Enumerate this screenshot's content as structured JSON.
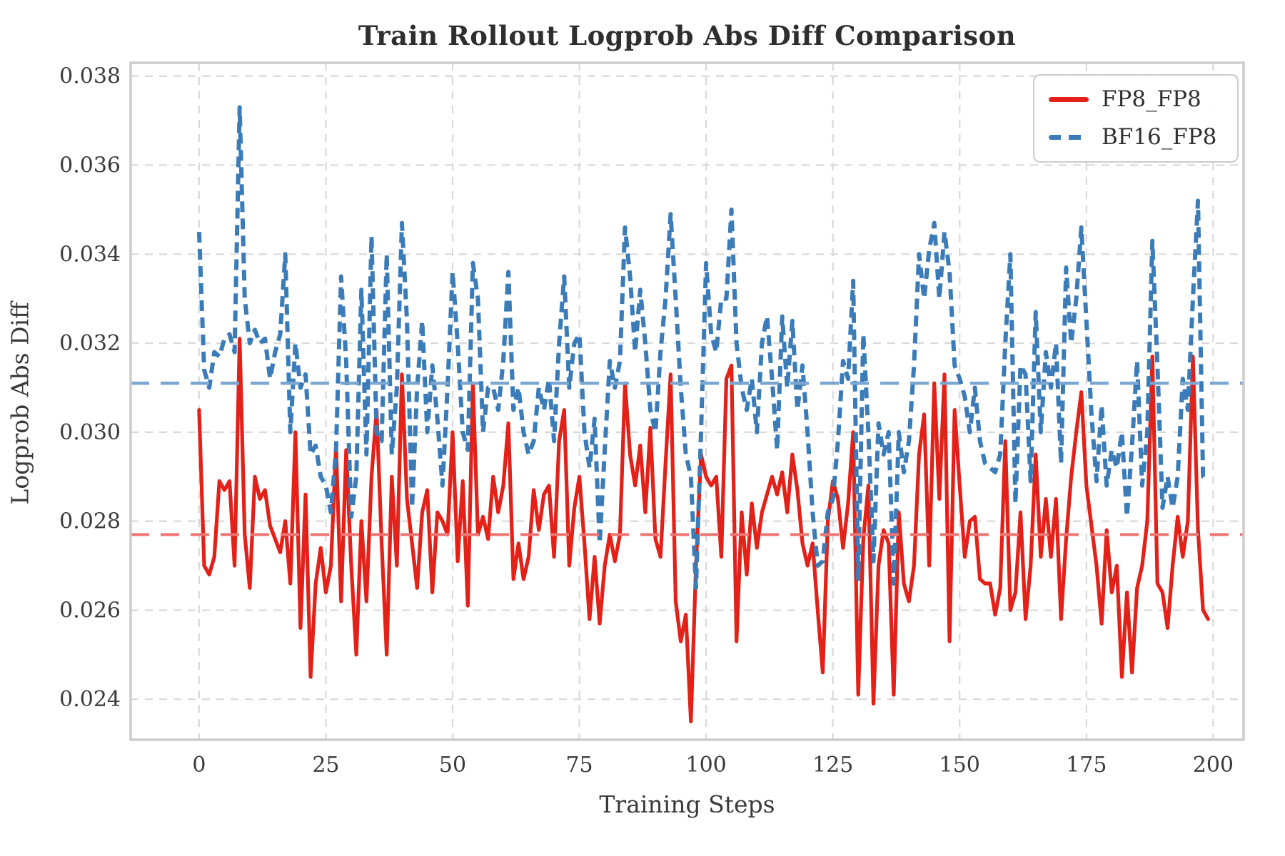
{
  "figure": {
    "title": "Train Rollout Logprob Abs Diff Comparison",
    "background": "#ffffff"
  },
  "legend": {
    "position": "upper right",
    "items": [
      {
        "label": "FP8_FP8"
      },
      {
        "label": "BF16_FP8"
      }
    ]
  },
  "chart_data": {
    "type": "line",
    "title": "Train Rollout Logprob Abs Diff Comparison",
    "xlabel": "Training Steps",
    "ylabel": "Logprob Abs Diff",
    "x_start": 0,
    "x_interval": 1,
    "n_points": 200,
    "xlim": [
      -13.5,
      206
    ],
    "ylim": [
      0.02309,
      0.0383
    ],
    "x_ticks": [
      0,
      25,
      50,
      75,
      100,
      125,
      150,
      175,
      200
    ],
    "y_ticks": [
      0.024,
      0.026,
      0.028,
      0.03,
      0.032,
      0.034,
      0.036,
      0.038
    ],
    "grid": "dashed, both axes",
    "legend_position": "upper right",
    "colors": {
      "fp8_line": "#e32119",
      "bf16_line": "#3b7cb8",
      "fp8_mean_line": "#ee7572",
      "bf16_mean_line": "#7aa6d2",
      "grid": "#d9d9d9",
      "spine": "#cccccc",
      "text": "#3a3a3a"
    },
    "mean_lines": [
      {
        "series": "FP8_FP8",
        "value": 0.0277,
        "style": "dashed"
      },
      {
        "series": "BF16_FP8",
        "value": 0.0311,
        "style": "dashed"
      }
    ],
    "series": [
      {
        "name": "FP8_FP8",
        "style": "solid",
        "color": "#e32119",
        "values": [
          0.0305,
          0.027,
          0.0268,
          0.0272,
          0.0289,
          0.0287,
          0.0289,
          0.027,
          0.0321,
          0.0277,
          0.0265,
          0.029,
          0.0285,
          0.0287,
          0.0279,
          0.0276,
          0.0273,
          0.028,
          0.0266,
          0.03,
          0.0256,
          0.0286,
          0.0245,
          0.0266,
          0.0274,
          0.0264,
          0.027,
          0.0297,
          0.0262,
          0.0296,
          0.027,
          0.025,
          0.028,
          0.0262,
          0.029,
          0.0305,
          0.0275,
          0.025,
          0.029,
          0.027,
          0.0313,
          0.0285,
          0.0275,
          0.0265,
          0.0282,
          0.0287,
          0.0264,
          0.0282,
          0.028,
          0.0277,
          0.03,
          0.0271,
          0.0289,
          0.0261,
          0.0311,
          0.0277,
          0.0281,
          0.0276,
          0.029,
          0.0282,
          0.0288,
          0.0302,
          0.0267,
          0.0275,
          0.0267,
          0.0272,
          0.0287,
          0.0278,
          0.0286,
          0.0288,
          0.0272,
          0.0298,
          0.0305,
          0.027,
          0.0283,
          0.029,
          0.0275,
          0.0258,
          0.0272,
          0.0257,
          0.027,
          0.0277,
          0.0271,
          0.0277,
          0.0311,
          0.0295,
          0.0288,
          0.0297,
          0.0282,
          0.0301,
          0.0276,
          0.0272,
          0.0293,
          0.0313,
          0.0262,
          0.0253,
          0.0259,
          0.0235,
          0.027,
          0.0295,
          0.029,
          0.0288,
          0.029,
          0.0272,
          0.0312,
          0.0315,
          0.0253,
          0.0282,
          0.0268,
          0.0284,
          0.0274,
          0.0282,
          0.0286,
          0.029,
          0.0286,
          0.0291,
          0.0282,
          0.0295,
          0.0287,
          0.0275,
          0.027,
          0.0275,
          0.026,
          0.0246,
          0.028,
          0.0289,
          0.0285,
          0.0274,
          0.0284,
          0.03,
          0.0241,
          0.0276,
          0.0288,
          0.0239,
          0.027,
          0.0278,
          0.0275,
          0.0241,
          0.0282,
          0.0266,
          0.0262,
          0.027,
          0.0295,
          0.0304,
          0.027,
          0.0311,
          0.0285,
          0.0313,
          0.0253,
          0.0305,
          0.0288,
          0.0272,
          0.028,
          0.0281,
          0.0267,
          0.0266,
          0.0266,
          0.0259,
          0.0265,
          0.0298,
          0.026,
          0.0264,
          0.0282,
          0.0258,
          0.027,
          0.0295,
          0.0272,
          0.0285,
          0.0272,
          0.0285,
          0.0258,
          0.0276,
          0.029,
          0.03,
          0.0309,
          0.0288,
          0.0279,
          0.027,
          0.0257,
          0.0278,
          0.0264,
          0.027,
          0.0245,
          0.0264,
          0.0246,
          0.0265,
          0.027,
          0.028,
          0.0317,
          0.0266,
          0.0264,
          0.0256,
          0.027,
          0.0281,
          0.0272,
          0.028,
          0.0317,
          0.0278,
          0.026,
          0.0258
        ]
      },
      {
        "name": "BF16_FP8",
        "style": "dashed",
        "color": "#3b7cb8",
        "values": [
          0.0345,
          0.0314,
          0.031,
          0.0318,
          0.0317,
          0.0321,
          0.0322,
          0.0318,
          0.0373,
          0.033,
          0.032,
          0.0323,
          0.032,
          0.0321,
          0.0312,
          0.0318,
          0.0322,
          0.034,
          0.03,
          0.032,
          0.031,
          0.0313,
          0.0295,
          0.0297,
          0.029,
          0.0288,
          0.0282,
          0.0296,
          0.0335,
          0.0316,
          0.0281,
          0.029,
          0.0332,
          0.0295,
          0.0344,
          0.03,
          0.0298,
          0.034,
          0.0295,
          0.031,
          0.0347,
          0.0325,
          0.0283,
          0.031,
          0.0325,
          0.03,
          0.0315,
          0.0303,
          0.0288,
          0.031,
          0.0336,
          0.032,
          0.03,
          0.0296,
          0.0338,
          0.033,
          0.03,
          0.031,
          0.031,
          0.0305,
          0.0316,
          0.0336,
          0.0305,
          0.031,
          0.03,
          0.0295,
          0.0298,
          0.031,
          0.0305,
          0.0312,
          0.0298,
          0.032,
          0.0335,
          0.031,
          0.032,
          0.0322,
          0.03,
          0.0292,
          0.0303,
          0.0275,
          0.0296,
          0.0316,
          0.031,
          0.0316,
          0.0346,
          0.0335,
          0.0318,
          0.0332,
          0.032,
          0.0305,
          0.03,
          0.0318,
          0.033,
          0.0349,
          0.033,
          0.031,
          0.0295,
          0.029,
          0.0265,
          0.03,
          0.0338,
          0.0322,
          0.0318,
          0.033,
          0.033,
          0.035,
          0.032,
          0.031,
          0.0305,
          0.0312,
          0.03,
          0.032,
          0.0326,
          0.0312,
          0.0296,
          0.0326,
          0.031,
          0.0325,
          0.0305,
          0.0315,
          0.03,
          0.0282,
          0.027,
          0.0271,
          0.0282,
          0.0285,
          0.0298,
          0.0316,
          0.0312,
          0.0334,
          0.0267,
          0.0322,
          0.03,
          0.0271,
          0.0302,
          0.0295,
          0.03,
          0.0266,
          0.03,
          0.0291,
          0.0298,
          0.0315,
          0.034,
          0.033,
          0.0341,
          0.0347,
          0.033,
          0.0345,
          0.0336,
          0.0315,
          0.0312,
          0.0308,
          0.03,
          0.031,
          0.0298,
          0.0293,
          0.0292,
          0.0291,
          0.0295,
          0.032,
          0.034,
          0.0284,
          0.0315,
          0.0313,
          0.0289,
          0.0327,
          0.03,
          0.0318,
          0.031,
          0.032,
          0.0293,
          0.0337,
          0.032,
          0.033,
          0.0346,
          0.0325,
          0.0304,
          0.0289,
          0.0306,
          0.0288,
          0.0296,
          0.0292,
          0.03,
          0.0281,
          0.0297,
          0.0316,
          0.0288,
          0.03,
          0.0343,
          0.0315,
          0.0283,
          0.029,
          0.0283,
          0.029,
          0.0312,
          0.0305,
          0.033,
          0.0352,
          0.029,
          0.0289
        ]
      }
    ]
  }
}
